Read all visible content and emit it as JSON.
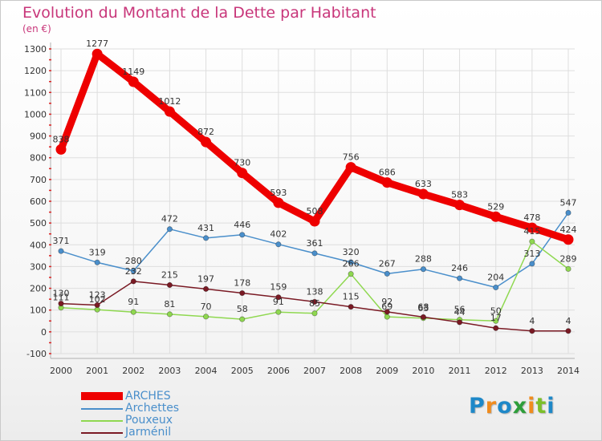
{
  "title": "Evolution du Montant de la Dette par Habitant",
  "unit": "(en €)",
  "brand": {
    "text": "Proxiti",
    "letters": [
      "P",
      "r",
      "o",
      "x",
      "i",
      "t",
      "i"
    ],
    "letter_colors": [
      "#1e88c8",
      "#f08c1e",
      "#1e88c8",
      "#2e9e3a",
      "#f08c1e",
      "#7cbf2a",
      "#1e88c8"
    ]
  },
  "chart_data": {
    "type": "line",
    "title": "Evolution du Montant de la Dette par Habitant",
    "ylabel": "(en €)",
    "xlabel": "",
    "x": [
      "2000",
      "2001",
      "2002",
      "2003",
      "2004",
      "2005",
      "2006",
      "2007",
      "2008",
      "2009",
      "2010",
      "2011",
      "2012",
      "2013",
      "2014"
    ],
    "ylim": [
      -100,
      1300
    ],
    "yticks": [
      "-100",
      "0",
      "100",
      "200",
      "300",
      "400",
      "500",
      "600",
      "700",
      "800",
      "900",
      "1000",
      "1100",
      "1200",
      "1300"
    ],
    "grid": true,
    "legend_position": "bottom-left",
    "series": [
      {
        "name": "ARCHES",
        "color": "#ee0000",
        "emphasis": true,
        "values": [
          838,
          1277,
          1149,
          1012,
          872,
          730,
          593,
          508,
          756,
          686,
          633,
          583,
          529,
          478,
          424
        ],
        "labels": [
          "838",
          "1277",
          "1149",
          "1012",
          "872",
          "730",
          "593",
          "508",
          "756",
          "686",
          "633",
          "583",
          "529",
          "478",
          "424"
        ]
      },
      {
        "name": "Archettes",
        "color": "#4a8fcb",
        "values": [
          371,
          319,
          280,
          472,
          431,
          446,
          402,
          361,
          320,
          267,
          288,
          246,
          204,
          313,
          547
        ],
        "labels": [
          "371",
          "319",
          "280",
          "472",
          "431",
          "446",
          "402",
          "361",
          "320",
          "267",
          "288",
          "246",
          "204",
          "313",
          "547"
        ]
      },
      {
        "name": "Pouxeux",
        "color": "#8fd850",
        "values": [
          111,
          102,
          91,
          81,
          70,
          58,
          91,
          85,
          266,
          69,
          63,
          56,
          50,
          415,
          289
        ],
        "labels": [
          "111",
          "102",
          "91",
          "81",
          "70",
          "58",
          "91",
          "85",
          "266",
          "69",
          "63",
          "56",
          "50",
          "415",
          "289"
        ]
      },
      {
        "name": "Jarménil",
        "color": "#7a1a24",
        "values": [
          130,
          123,
          232,
          215,
          197,
          178,
          159,
          138,
          115,
          92,
          68,
          44,
          17,
          4,
          4
        ],
        "labels": [
          "130",
          "123",
          "232",
          "215",
          "197",
          "178",
          "159",
          "138",
          "115",
          "92",
          "68",
          "44",
          "17",
          "4",
          "4"
        ]
      }
    ]
  }
}
